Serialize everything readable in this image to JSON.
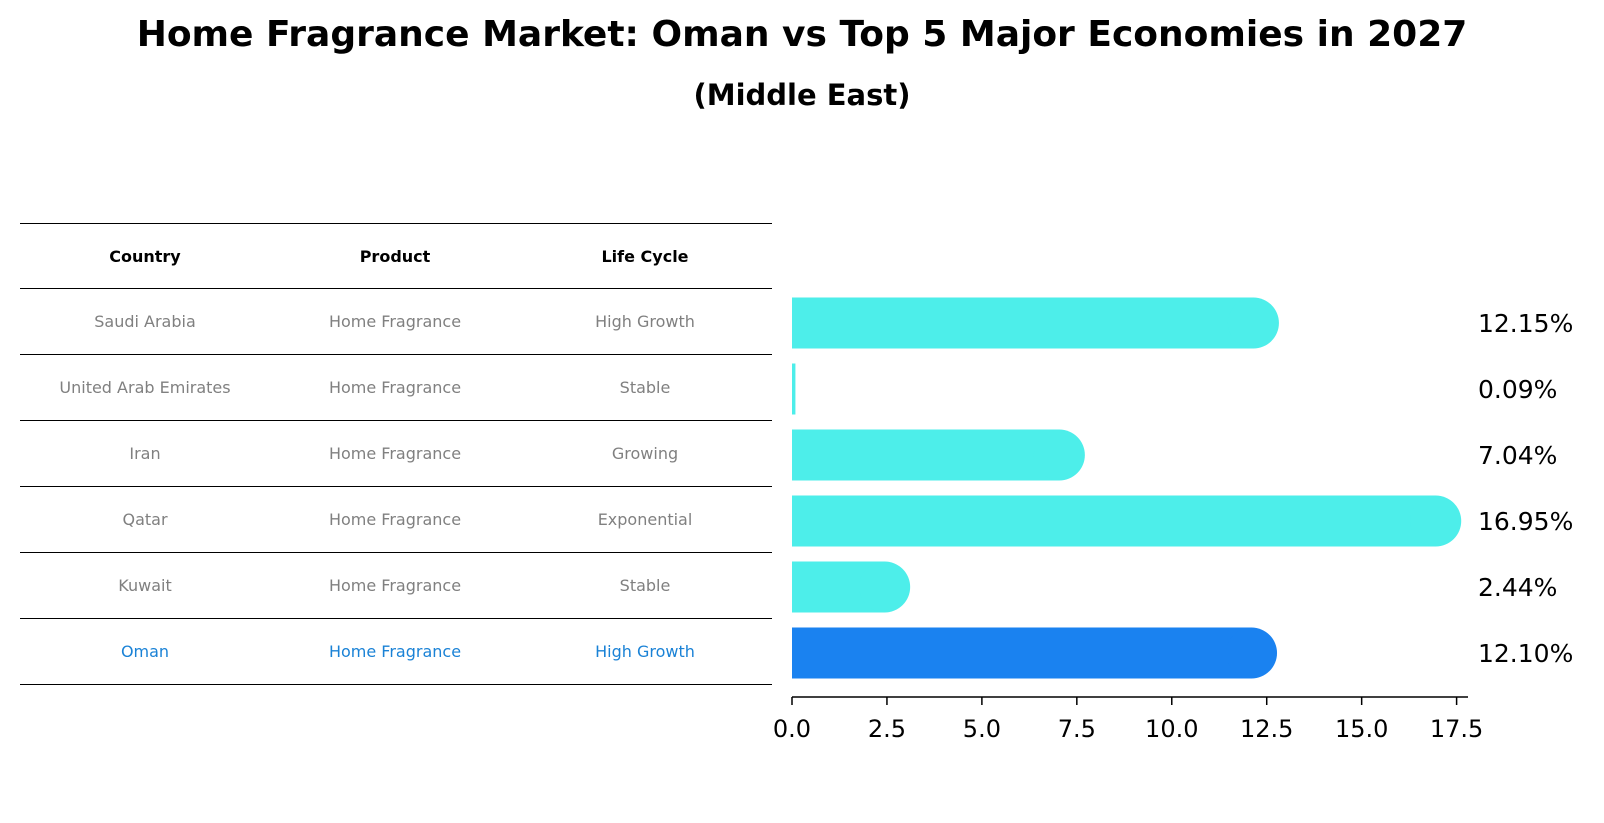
{
  "title": "Home Fragrance Market: Oman vs Top 5 Major Economies in 2027",
  "subtitle": "(Middle East)",
  "table": {
    "headers": [
      "Country",
      "Product",
      "Life Cycle"
    ],
    "rows": [
      [
        "Saudi Arabia",
        "Home Fragrance",
        "High Growth"
      ],
      [
        "United Arab Emirates",
        "Home Fragrance",
        "Stable"
      ],
      [
        "Iran",
        "Home Fragrance",
        "Growing"
      ],
      [
        "Qatar",
        "Home Fragrance",
        "Exponential"
      ],
      [
        "Kuwait",
        "Home Fragrance",
        "Stable"
      ],
      [
        "Oman",
        "Home Fragrance",
        "High Growth"
      ]
    ],
    "highlight_row": 5
  },
  "chart_data": {
    "type": "bar",
    "orientation": "horizontal",
    "categories": [
      "Saudi Arabia",
      "United Arab Emirates",
      "Iran",
      "Qatar",
      "Kuwait",
      "Oman"
    ],
    "values": [
      12.15,
      0.09,
      7.04,
      16.95,
      2.44,
      12.1
    ],
    "value_labels": [
      "12.15%",
      "0.09%",
      "7.04%",
      "16.95%",
      "2.44%",
      "12.10%"
    ],
    "xlim": [
      0,
      17.8
    ],
    "xticks": [
      0.0,
      2.5,
      5.0,
      7.5,
      10.0,
      12.5,
      15.0,
      17.5
    ],
    "xtick_labels": [
      "0.0",
      "2.5",
      "5.0",
      "7.5",
      "10.0",
      "12.5",
      "15.0",
      "17.5"
    ],
    "grid": false,
    "colors": {
      "bar": "#4deeea",
      "highlight": "#1a82f0"
    },
    "highlight_index": 5
  }
}
